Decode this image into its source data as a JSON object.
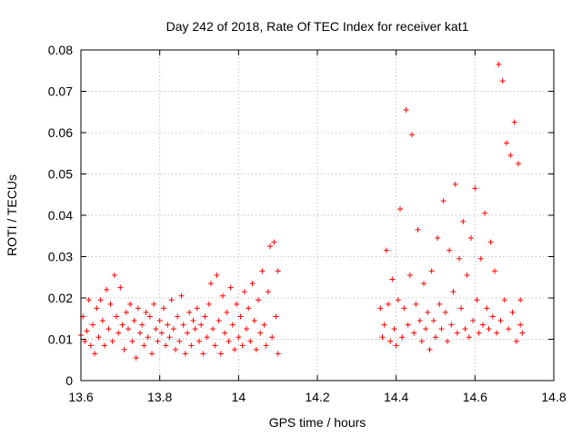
{
  "chart_data": {
    "type": "scatter",
    "title": "Day 242 of 2018, Rate Of TEC Index for receiver kat1",
    "xlabel": "GPS time / hours",
    "ylabel": "ROTI / TECUs",
    "xlim": [
      13.6,
      14.8
    ],
    "ylim": [
      0,
      0.08
    ],
    "xticks": [
      "13.6",
      "13.8",
      "14",
      "14.2",
      "14.4",
      "14.6",
      "14.8"
    ],
    "yticks": [
      "0",
      "0.01",
      "0.02",
      "0.03",
      "0.04",
      "0.05",
      "0.06",
      "0.07",
      "0.08"
    ],
    "grid": true,
    "marker": "plus",
    "color": "#ff0000",
    "series": [
      {
        "name": "kat1",
        "points": [
          [
            13.6,
            0.011
          ],
          [
            13.605,
            0.0155
          ],
          [
            13.61,
            0.0095
          ],
          [
            13.615,
            0.012
          ],
          [
            13.62,
            0.0195
          ],
          [
            13.625,
            0.0085
          ],
          [
            13.63,
            0.0135
          ],
          [
            13.635,
            0.0065
          ],
          [
            13.64,
            0.0175
          ],
          [
            13.645,
            0.0105
          ],
          [
            13.65,
            0.0195
          ],
          [
            13.655,
            0.0145
          ],
          [
            13.66,
            0.0085
          ],
          [
            13.665,
            0.022
          ],
          [
            13.67,
            0.0125
          ],
          [
            13.675,
            0.0185
          ],
          [
            13.68,
            0.0095
          ],
          [
            13.685,
            0.0255
          ],
          [
            13.69,
            0.0155
          ],
          [
            13.695,
            0.0115
          ],
          [
            13.7,
            0.0225
          ],
          [
            13.705,
            0.0135
          ],
          [
            13.71,
            0.0075
          ],
          [
            13.715,
            0.0165
          ],
          [
            13.72,
            0.0125
          ],
          [
            13.725,
            0.0185
          ],
          [
            13.73,
            0.0095
          ],
          [
            13.735,
            0.0145
          ],
          [
            13.74,
            0.0055
          ],
          [
            13.745,
            0.0175
          ],
          [
            13.75,
            0.0115
          ],
          [
            13.755,
            0.0135
          ],
          [
            13.76,
            0.0085
          ],
          [
            13.765,
            0.0165
          ],
          [
            13.77,
            0.0105
          ],
          [
            13.775,
            0.0155
          ],
          [
            13.78,
            0.0065
          ],
          [
            13.785,
            0.0185
          ],
          [
            13.79,
            0.0125
          ],
          [
            13.795,
            0.0095
          ],
          [
            13.8,
            0.0145
          ],
          [
            13.805,
            0.0115
          ],
          [
            13.81,
            0.0175
          ],
          [
            13.815,
            0.0085
          ],
          [
            13.82,
            0.0135
          ],
          [
            13.825,
            0.0105
          ],
          [
            13.83,
            0.0195
          ],
          [
            13.835,
            0.0125
          ],
          [
            13.84,
            0.0075
          ],
          [
            13.845,
            0.0155
          ],
          [
            13.85,
            0.0095
          ],
          [
            13.855,
            0.0205
          ],
          [
            13.86,
            0.0135
          ],
          [
            13.865,
            0.0065
          ],
          [
            13.87,
            0.0115
          ],
          [
            13.875,
            0.0165
          ],
          [
            13.88,
            0.0085
          ],
          [
            13.885,
            0.0145
          ],
          [
            13.89,
            0.0125
          ],
          [
            13.895,
            0.0175
          ],
          [
            13.9,
            0.0095
          ],
          [
            13.905,
            0.0135
          ],
          [
            13.91,
            0.0065
          ],
          [
            13.915,
            0.0155
          ],
          [
            13.92,
            0.0105
          ],
          [
            13.925,
            0.0185
          ],
          [
            13.93,
            0.0235
          ],
          [
            13.935,
            0.0125
          ],
          [
            13.94,
            0.0085
          ],
          [
            13.945,
            0.0255
          ],
          [
            13.95,
            0.0145
          ],
          [
            13.955,
            0.0065
          ],
          [
            13.96,
            0.0205
          ],
          [
            13.965,
            0.0115
          ],
          [
            13.97,
            0.0165
          ],
          [
            13.975,
            0.0095
          ],
          [
            13.98,
            0.0225
          ],
          [
            13.985,
            0.0135
          ],
          [
            13.99,
            0.0075
          ],
          [
            13.995,
            0.0185
          ],
          [
            14.0,
            0.0105
          ],
          [
            14.005,
            0.0155
          ],
          [
            14.01,
            0.0085
          ],
          [
            14.015,
            0.0215
          ],
          [
            14.02,
            0.0125
          ],
          [
            14.025,
            0.0175
          ],
          [
            14.03,
            0.0095
          ],
          [
            14.035,
            0.0235
          ],
          [
            14.04,
            0.0145
          ],
          [
            14.045,
            0.0075
          ],
          [
            14.05,
            0.0195
          ],
          [
            14.055,
            0.0115
          ],
          [
            14.06,
            0.0265
          ],
          [
            14.065,
            0.0135
          ],
          [
            14.07,
            0.0085
          ],
          [
            14.075,
            0.0215
          ],
          [
            14.08,
            0.0325
          ],
          [
            14.085,
            0.0105
          ],
          [
            14.09,
            0.0335
          ],
          [
            14.095,
            0.0155
          ],
          [
            14.1,
            0.0265
          ],
          [
            14.1,
            0.0065
          ],
          [
            14.36,
            0.0175
          ],
          [
            14.365,
            0.0105
          ],
          [
            14.37,
            0.0135
          ],
          [
            14.375,
            0.0315
          ],
          [
            14.38,
            0.0185
          ],
          [
            14.385,
            0.0095
          ],
          [
            14.39,
            0.0245
          ],
          [
            14.395,
            0.0125
          ],
          [
            14.4,
            0.0085
          ],
          [
            14.405,
            0.0195
          ],
          [
            14.41,
            0.0415
          ],
          [
            14.415,
            0.0105
          ],
          [
            14.42,
            0.0175
          ],
          [
            14.425,
            0.0655
          ],
          [
            14.43,
            0.0135
          ],
          [
            14.435,
            0.0255
          ],
          [
            14.44,
            0.0595
          ],
          [
            14.445,
            0.0115
          ],
          [
            14.45,
            0.0185
          ],
          [
            14.455,
            0.0365
          ],
          [
            14.46,
            0.0145
          ],
          [
            14.465,
            0.0095
          ],
          [
            14.47,
            0.0235
          ],
          [
            14.475,
            0.0125
          ],
          [
            14.48,
            0.0165
          ],
          [
            14.485,
            0.0075
          ],
          [
            14.49,
            0.0265
          ],
          [
            14.495,
            0.0145
          ],
          [
            14.5,
            0.0105
          ],
          [
            14.505,
            0.0345
          ],
          [
            14.51,
            0.0185
          ],
          [
            14.515,
            0.0125
          ],
          [
            14.52,
            0.0435
          ],
          [
            14.525,
            0.0165
          ],
          [
            14.53,
            0.0095
          ],
          [
            14.535,
            0.0315
          ],
          [
            14.54,
            0.0135
          ],
          [
            14.545,
            0.0215
          ],
          [
            14.55,
            0.0475
          ],
          [
            14.555,
            0.0115
          ],
          [
            14.56,
            0.0295
          ],
          [
            14.565,
            0.0175
          ],
          [
            14.57,
            0.0385
          ],
          [
            14.575,
            0.0125
          ],
          [
            14.58,
            0.0255
          ],
          [
            14.585,
            0.0105
          ],
          [
            14.59,
            0.0345
          ],
          [
            14.595,
            0.0145
          ],
          [
            14.6,
            0.0465
          ],
          [
            14.605,
            0.0195
          ],
          [
            14.61,
            0.0115
          ],
          [
            14.615,
            0.0295
          ],
          [
            14.62,
            0.0135
          ],
          [
            14.625,
            0.0405
          ],
          [
            14.63,
            0.0175
          ],
          [
            14.635,
            0.0125
          ],
          [
            14.64,
            0.0335
          ],
          [
            14.645,
            0.0155
          ],
          [
            14.65,
            0.0265
          ],
          [
            14.655,
            0.0115
          ],
          [
            14.66,
            0.0765
          ],
          [
            14.665,
            0.0145
          ],
          [
            14.67,
            0.0725
          ],
          [
            14.675,
            0.0195
          ],
          [
            14.68,
            0.0575
          ],
          [
            14.685,
            0.0125
          ],
          [
            14.69,
            0.0545
          ],
          [
            14.695,
            0.0165
          ],
          [
            14.7,
            0.0625
          ],
          [
            14.705,
            0.0095
          ],
          [
            14.71,
            0.0525
          ],
          [
            14.715,
            0.0135
          ],
          [
            14.715,
            0.0195
          ],
          [
            14.72,
            0.0115
          ]
        ]
      }
    ]
  }
}
